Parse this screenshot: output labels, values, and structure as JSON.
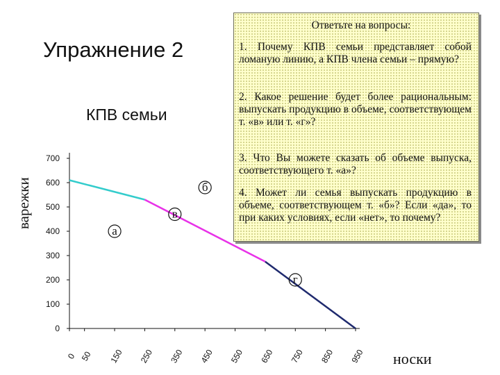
{
  "exercise_title": "Упражнение 2",
  "questions_box": {
    "heading": "Ответьте на вопросы:",
    "items": [
      "1. Почему КПВ семьи представляет собой ломаную линию, а КПВ члена семьи – прямую?",
      "2. Какое решение будет более рациональным: выпускать продукцию в объеме, соответствующем т. «в» или т. «г»?",
      "3. Что Вы можете сказать об объеме выпуска, соответствующего т. «а»?",
      "4. Может ли семья выпускать продукцию в объеме, соответствующем т. «б»? Если «да», то при каких условиях, если «нет», то почему?"
    ]
  },
  "chart_data": {
    "type": "line",
    "title": "КПВ семьи",
    "xlabel": "носки",
    "ylabel": "варежки",
    "x_ticks": [
      0,
      50,
      150,
      250,
      350,
      450,
      550,
      650,
      750,
      850,
      950
    ],
    "y_ticks": [
      0,
      100,
      200,
      300,
      400,
      500,
      600,
      700
    ],
    "xlim": [
      0,
      950
    ],
    "ylim": [
      0,
      700
    ],
    "segments": [
      {
        "color": "#33cccc",
        "points": [
          [
            0,
            610
          ],
          [
            250,
            530
          ]
        ]
      },
      {
        "color": "#e832e8",
        "points": [
          [
            250,
            530
          ],
          [
            650,
            275
          ]
        ]
      },
      {
        "color": "#1f2a6e",
        "points": [
          [
            650,
            275
          ],
          [
            950,
            0
          ]
        ]
      }
    ],
    "points": [
      {
        "label": "а",
        "x": 150,
        "y": 400
      },
      {
        "label": "б",
        "x": 450,
        "y": 580
      },
      {
        "label": "в",
        "x": 350,
        "y": 470
      },
      {
        "label": "г",
        "x": 750,
        "y": 200
      }
    ],
    "colors": {
      "axis": "#111111",
      "segment_1": "#33cccc",
      "segment_2": "#e832e8",
      "segment_3": "#1f2a6e"
    }
  }
}
